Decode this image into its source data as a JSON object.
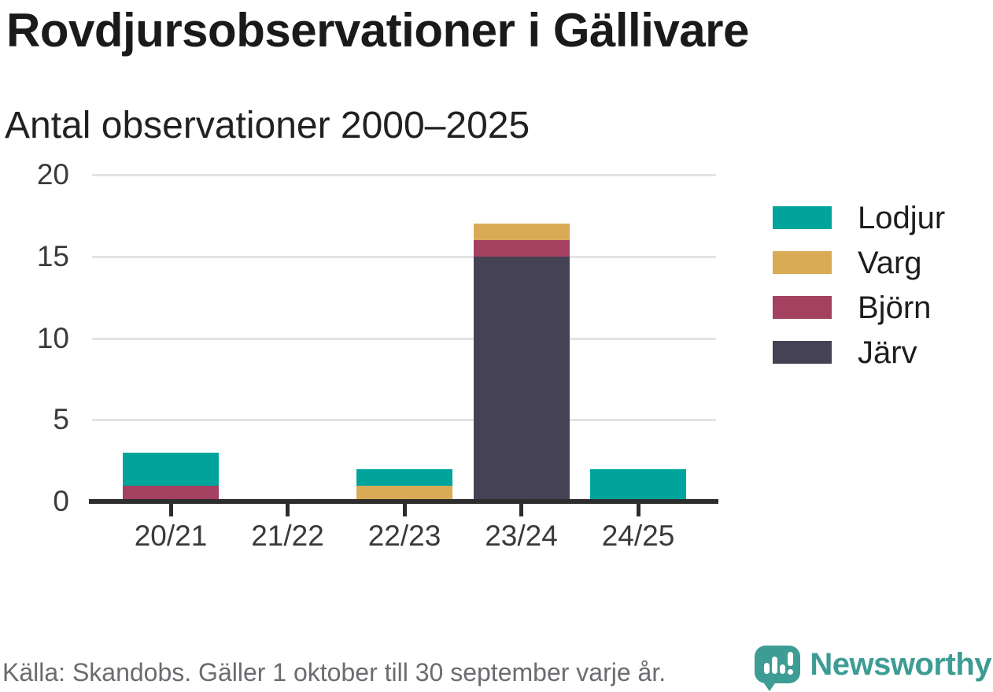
{
  "header": {
    "title": "Rovdjursobservationer i Gällivare",
    "subtitle": "Antal observationer 2000–2025"
  },
  "chart_data": {
    "type": "bar",
    "stacked": true,
    "title": "Rovdjursobservationer i Gällivare",
    "subtitle": "Antal observationer 2000–2025",
    "categories": [
      "20/21",
      "21/22",
      "22/23",
      "23/24",
      "24/25"
    ],
    "series": [
      {
        "name": "Lodjur",
        "color": "#00a49a",
        "values": [
          2,
          0,
          1,
          0,
          2
        ]
      },
      {
        "name": "Varg",
        "color": "#d9ab57",
        "values": [
          0,
          0,
          1,
          1,
          0
        ]
      },
      {
        "name": "Björn",
        "color": "#a44060",
        "values": [
          1,
          0,
          0,
          1,
          0
        ]
      },
      {
        "name": "Järv",
        "color": "#454253",
        "values": [
          0,
          0,
          0,
          15,
          0
        ]
      }
    ],
    "stack_order_bottom_to_top": [
      "Järv",
      "Björn",
      "Varg",
      "Lodjur"
    ],
    "totals_by_category": [
      3,
      0,
      2,
      17,
      2
    ],
    "y_ticks": [
      0,
      5,
      10,
      15,
      20
    ],
    "ylim": [
      0,
      20
    ],
    "xlabel": "",
    "ylabel": "",
    "grid": "horizontal",
    "legend_position": "right"
  },
  "footer": {
    "source": "Källa: Skandobs. Gäller 1 oktober till 30 september varje år.",
    "brand": "Newsworthy"
  },
  "colors": {
    "accent_teal": "#00a49a",
    "gold": "#d9ab57",
    "maroon": "#a44060",
    "slate": "#454253",
    "brand_teal": "#3d9c94",
    "gridline": "#e3e3e3",
    "axis": "#2d2d2d",
    "text_dark": "#1a1a1a",
    "text_gray": "#6b6b70"
  }
}
